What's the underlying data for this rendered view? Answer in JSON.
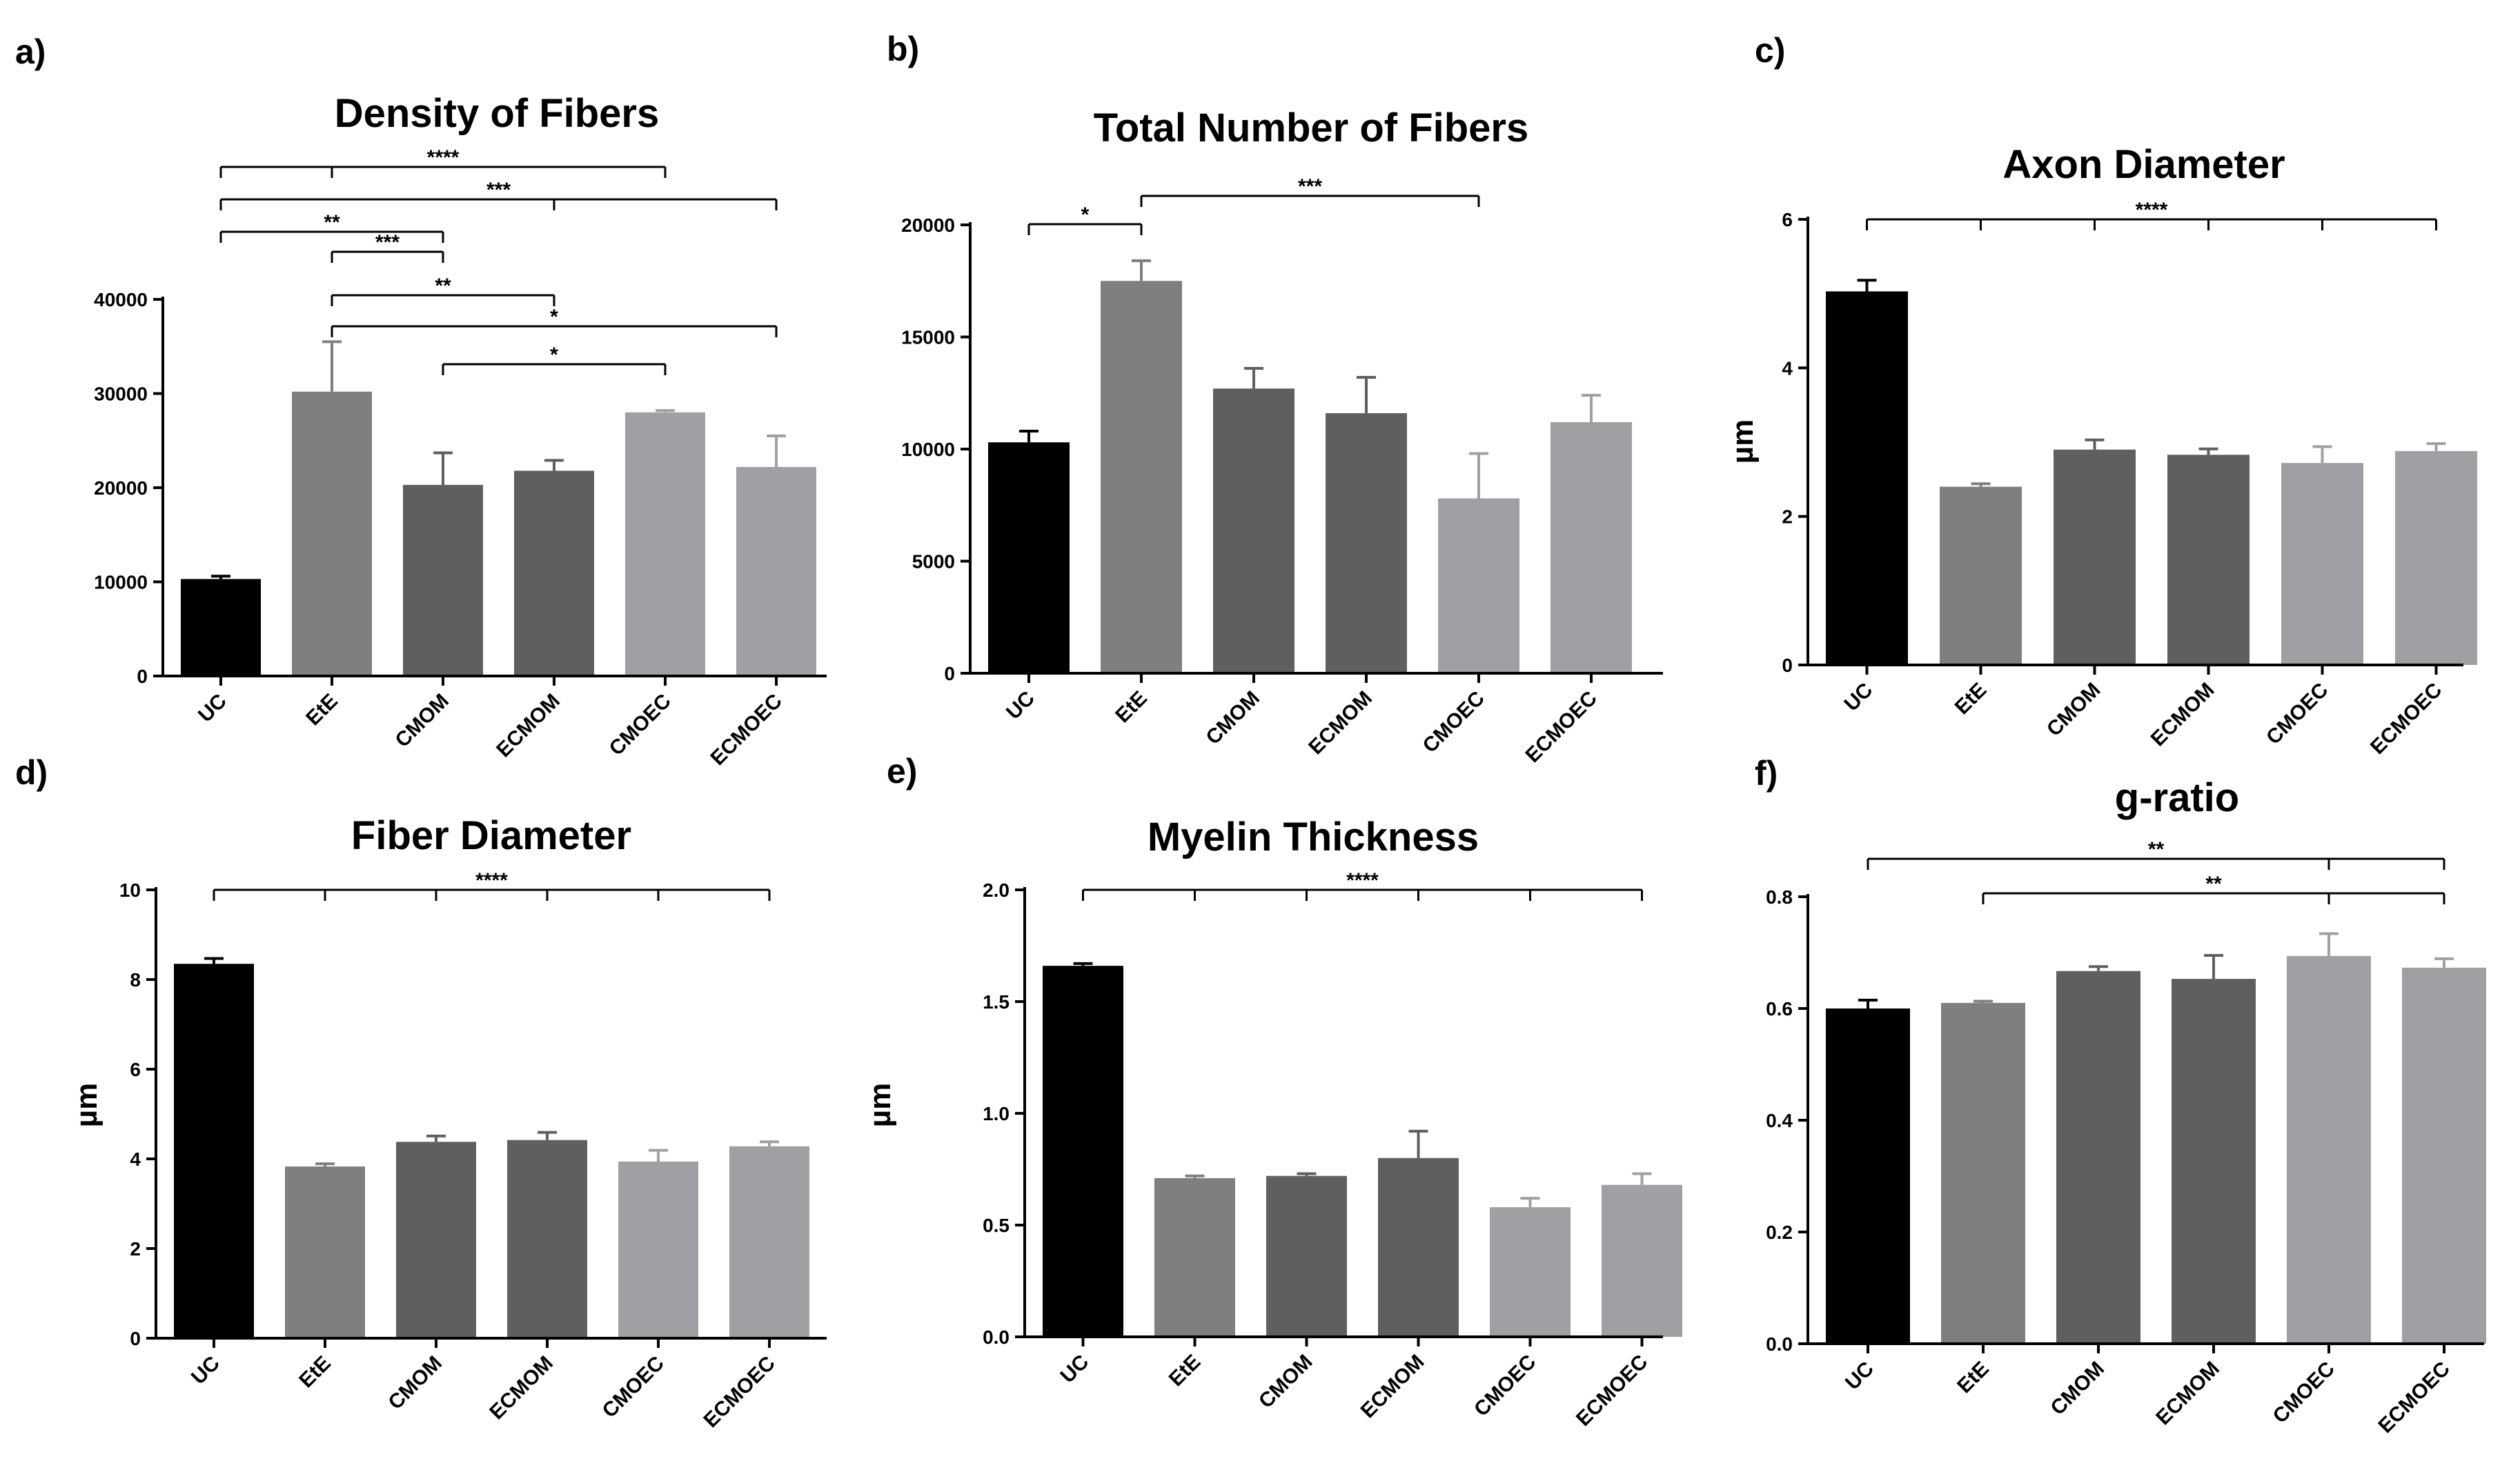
{
  "figure": {
    "categories": [
      "UC",
      "EtE",
      "CMOM",
      "ECMOM",
      "CMOEC",
      "ECMOEC"
    ],
    "bar_colors": [
      "#000000",
      "#7f7f7f",
      "#5f5f5f",
      "#5f5f5f",
      "#a0a0a4",
      "#a0a0a4"
    ]
  },
  "chart_data": [
    {
      "panel": "a)",
      "type": "bar",
      "title": "Density of Fibers",
      "xlabel": "",
      "ylabel": "",
      "categories": [
        "UC",
        "EtE",
        "CMOM",
        "ECMOM",
        "CMOEC",
        "ECMOEC"
      ],
      "values": [
        10300,
        30200,
        20300,
        21800,
        28000,
        22200
      ],
      "errors": [
        300,
        5300,
        3400,
        1100,
        200,
        3300
      ],
      "ylim": [
        0,
        40000
      ],
      "yticks": [
        "0",
        "10000",
        "20000",
        "30000",
        "40000"
      ],
      "significance": [
        {
          "from": 0,
          "to": 4,
          "ticks": [
            1
          ],
          "label": "****"
        },
        {
          "from": 0,
          "to": 5,
          "ticks": [
            3
          ],
          "label": "***"
        },
        {
          "from": 0,
          "to": 2,
          "ticks": [],
          "label": "**"
        },
        {
          "from": 1,
          "to": 2,
          "ticks": [],
          "label": "***"
        },
        {
          "from": 1,
          "to": 3,
          "ticks": [],
          "label": "**"
        },
        {
          "from": 1,
          "to": 5,
          "ticks": [],
          "label": "*"
        },
        {
          "from": 2,
          "to": 4,
          "ticks": [],
          "label": "*"
        }
      ]
    },
    {
      "panel": "b)",
      "type": "bar",
      "title": "Total Number of Fibers",
      "xlabel": "",
      "ylabel": "",
      "categories": [
        "UC",
        "EtE",
        "CMOM",
        "ECMOM",
        "CMOEC",
        "ECMOEC"
      ],
      "values": [
        10300,
        17500,
        12700,
        11600,
        7800,
        11200
      ],
      "errors": [
        500,
        900,
        900,
        1600,
        2000,
        1200
      ],
      "ylim": [
        0,
        20000
      ],
      "yticks": [
        "0",
        "5000",
        "10000",
        "15000",
        "20000"
      ],
      "significance": [
        {
          "from": 0,
          "to": 1,
          "ticks": [],
          "label": "*"
        },
        {
          "from": 1,
          "to": 4,
          "ticks": [],
          "label": "***"
        }
      ]
    },
    {
      "panel": "c)",
      "type": "bar",
      "title": "Axon Diameter",
      "xlabel": "",
      "ylabel": "µm",
      "categories": [
        "UC",
        "EtE",
        "CMOM",
        "ECMOM",
        "CMOEC",
        "ECMOEC"
      ],
      "values": [
        5.03,
        2.4,
        2.9,
        2.83,
        2.72,
        2.88
      ],
      "errors": [
        0.15,
        0.04,
        0.13,
        0.08,
        0.22,
        0.1
      ],
      "ylim": [
        0,
        6
      ],
      "yticks": [
        "0",
        "2",
        "4",
        "6"
      ],
      "significance": [
        {
          "from": 0,
          "to": 5,
          "ticks": [
            1,
            2,
            3,
            4
          ],
          "label": "****"
        }
      ]
    },
    {
      "panel": "d)",
      "type": "bar",
      "title": "Fiber Diameter",
      "xlabel": "",
      "ylabel": "µm",
      "categories": [
        "UC",
        "EtE",
        "CMOM",
        "ECMOM",
        "CMOEC",
        "ECMOEC"
      ],
      "values": [
        8.35,
        3.83,
        4.38,
        4.42,
        3.94,
        4.28
      ],
      "errors": [
        0.12,
        0.06,
        0.13,
        0.17,
        0.25,
        0.1
      ],
      "ylim": [
        0,
        10
      ],
      "yticks": [
        "0",
        "2",
        "4",
        "6",
        "8",
        "10"
      ],
      "significance": [
        {
          "from": 0,
          "to": 5,
          "ticks": [
            1,
            2,
            3,
            4
          ],
          "label": "****"
        }
      ]
    },
    {
      "panel": "e)",
      "type": "bar",
      "title": "Myelin Thickness",
      "xlabel": "",
      "ylabel": "µm",
      "categories": [
        "UC",
        "EtE",
        "CMOM",
        "ECMOM",
        "CMOEC",
        "ECMOEC"
      ],
      "values": [
        1.66,
        0.71,
        0.72,
        0.8,
        0.58,
        0.68
      ],
      "errors": [
        0.01,
        0.01,
        0.01,
        0.12,
        0.04,
        0.05
      ],
      "ylim": [
        0,
        2
      ],
      "yticks": [
        "0.0",
        "0.5",
        "1.0",
        "1.5",
        "2.0"
      ],
      "significance": [
        {
          "from": 0,
          "to": 5,
          "ticks": [
            1,
            2,
            3,
            4
          ],
          "label": "****"
        }
      ]
    },
    {
      "panel": "f)",
      "type": "bar",
      "title": "g-ratio",
      "xlabel": "",
      "ylabel": "",
      "categories": [
        "UC",
        "EtE",
        "CMOM",
        "ECMOM",
        "CMOEC",
        "ECMOEC"
      ],
      "values": [
        0.6,
        0.61,
        0.667,
        0.653,
        0.694,
        0.673
      ],
      "errors": [
        0.015,
        0.003,
        0.008,
        0.042,
        0.04,
        0.016
      ],
      "ylim": [
        0,
        0.8
      ],
      "yticks": [
        "0.0",
        "0.2",
        "0.4",
        "0.6",
        "0.8"
      ],
      "significance": [
        {
          "from": 0,
          "to": 5,
          "ticks": [
            4
          ],
          "label": "**"
        },
        {
          "from": 1,
          "to": 5,
          "ticks": [
            4
          ],
          "label": "**"
        }
      ]
    }
  ]
}
